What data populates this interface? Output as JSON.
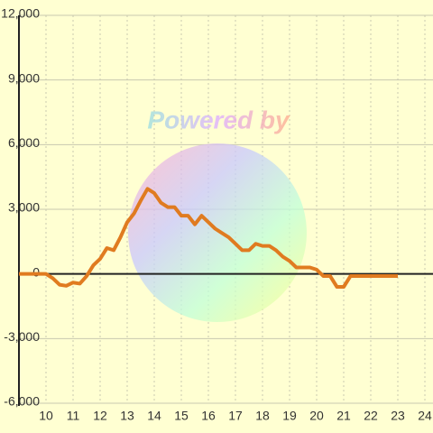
{
  "chart_data": {
    "type": "line",
    "watermark": "Powered by",
    "x": [
      9,
      9.5,
      10,
      10.25,
      10.5,
      10.75,
      11,
      11.25,
      11.5,
      11.75,
      12,
      12.25,
      12.5,
      12.75,
      13,
      13.25,
      13.5,
      13.75,
      14,
      14.25,
      14.5,
      14.75,
      15,
      15.25,
      15.5,
      15.75,
      16,
      16.25,
      16.5,
      16.75,
      17,
      17.25,
      17.5,
      17.75,
      18,
      18.25,
      18.5,
      18.75,
      19,
      19.25,
      19.5,
      19.75,
      20,
      20.25,
      20.5,
      20.75,
      21,
      21.25,
      21.5,
      21.75,
      22,
      22.25,
      22.5,
      22.75,
      23
    ],
    "series": [
      {
        "color": "#e07b20",
        "values": [
          0,
          0,
          0,
          -200,
          -500,
          -550,
          -400,
          -450,
          -100,
          400,
          700,
          1200,
          1100,
          1700,
          2400,
          2800,
          3400,
          3950,
          3750,
          3300,
          3100,
          3100,
          2700,
          2700,
          2300,
          2700,
          2400,
          2100,
          1900,
          1700,
          1400,
          1100,
          1100,
          1400,
          1300,
          1300,
          1100,
          800,
          600,
          300,
          300,
          300,
          200,
          -100,
          -100,
          -600,
          -600,
          -100,
          -100,
          -100,
          -100,
          -100,
          -100,
          -100,
          -100
        ]
      }
    ],
    "xlim": [
      9,
      24.3
    ],
    "xticks": [
      10,
      11,
      12,
      13,
      14,
      15,
      16,
      17,
      18,
      19,
      20,
      21,
      22,
      23,
      24
    ],
    "ylim": [
      -6000,
      12000
    ],
    "yticks": [
      {
        "value": -6000,
        "label": "-6,000"
      },
      {
        "value": -3000,
        "label": "-3,000"
      },
      0,
      {
        "value": 3000,
        "label": "3,000"
      },
      {
        "value": 6000,
        "label": "6,000"
      },
      {
        "value": 9000,
        "label": "9,000"
      },
      {
        "value": 12000,
        "label": "12,000"
      }
    ],
    "grid": true
  }
}
